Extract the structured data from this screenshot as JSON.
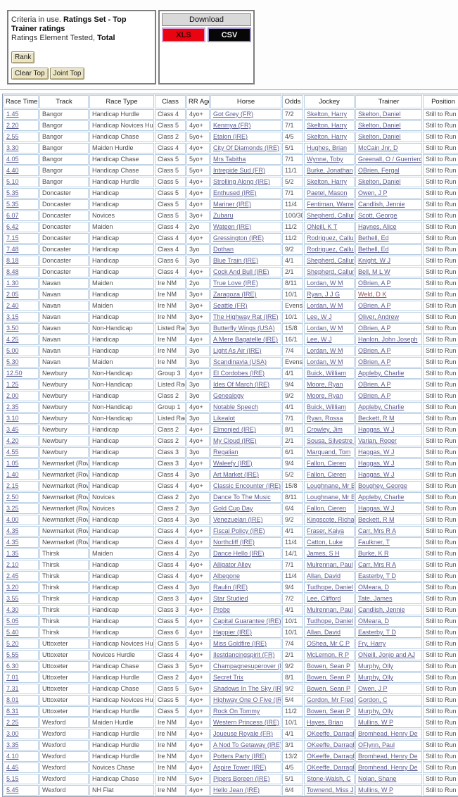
{
  "criteria": {
    "prefix": "Criteria in use.",
    "ratings_set": "Ratings Set - Top Trainer ratings",
    "element_prefix": "Ratings Element Tested,",
    "element_value": "Total",
    "rank_button": "Rank",
    "clear_top_button": "Clear Top",
    "joint_top_button": "Joint Top"
  },
  "download": {
    "title": "Download",
    "xls_label": "XLS",
    "csv_label": "CSV",
    "xls_bg": "#ea0311",
    "csv_bg": "#070707"
  },
  "colors": {
    "link": "#5b5b94",
    "visited_link": "#9a585c",
    "cell_border": "#b9cfe4"
  },
  "table": {
    "columns": [
      "Race Time",
      "Track",
      "Race Type",
      "Class",
      "RR Age",
      "Horse",
      "Odds",
      "Jockey",
      "Trainer",
      "Position"
    ],
    "visited_trainer": "Weld, D K",
    "rows": [
      [
        "1.45",
        "Bangor",
        "Handicap Hurdle",
        "Class 4",
        "4yo+",
        "Got Grey (FR)",
        "7/2",
        "Skelton, Harry",
        "Skelton, Daniel",
        "Still to Run"
      ],
      [
        "2.20",
        "Bangor",
        "Handicap Novices Hurdle",
        "Class 5",
        "4yo+",
        "Kenmya (FR)",
        "7/1",
        "Skelton, Harry",
        "Skelton, Daniel",
        "Still to Run"
      ],
      [
        "2.55",
        "Bangor",
        "Handicap Chase",
        "Class 2",
        "5yo+",
        "Etalon (IRE)",
        "4/5",
        "Skelton, Harry",
        "Skelton, Daniel",
        "Still to Run"
      ],
      [
        "3.30",
        "Bangor",
        "Maiden Hurdle",
        "Class 4",
        "4yo+",
        "City Of Diamonds (IRE)",
        "5/1",
        "Hughes, Brian",
        "McCain Jnr, D",
        "Still to Run"
      ],
      [
        "4.05",
        "Bangor",
        "Handicap Chase",
        "Class 5",
        "5yo+",
        "Mrs Tabitha",
        "7/1",
        "Wynne, Toby",
        "Greenall, O / Guerriero, J",
        "Still to Run"
      ],
      [
        "4.40",
        "Bangor",
        "Handicap Chase",
        "Class 5",
        "5yo+",
        "Intrepide Sud (FR)",
        "11/1",
        "Burke, Jonathan",
        "OBrien, Fergal",
        "Still to Run"
      ],
      [
        "5.10",
        "Bangor",
        "Handicap Hurdle",
        "Class 5",
        "4yo+",
        "Strolling Along (IRE)",
        "5/2",
        "Skelton, Harry",
        "Skelton, Daniel",
        "Still to Run"
      ],
      [
        "5.35",
        "Doncaster",
        "Handicap",
        "Class 5",
        "4yo+",
        "Enthused (IRE)",
        "7/1",
        "Paetel, Mason",
        "Owen, J P",
        "Still to Run"
      ],
      [
        "5.35",
        "Doncaster",
        "Handicap",
        "Class 5",
        "4yo+",
        "Mariner (IRE)",
        "11/4",
        "Fentiman, Warren",
        "Candlish, Jennie",
        "Still to Run"
      ],
      [
        "6.07",
        "Doncaster",
        "Novices",
        "Class 5",
        "3yo+",
        "Zubaru",
        "100/30",
        "Shepherd, Callum",
        "Scott, George",
        "Still to Run"
      ],
      [
        "6.42",
        "Doncaster",
        "Maiden",
        "Class 4",
        "2yo",
        "Wateen (IRE)",
        "11/2",
        "ONeill, K T",
        "Haynes, Alice",
        "Still to Run"
      ],
      [
        "7.15",
        "Doncaster",
        "Handicap",
        "Class 4",
        "4yo+",
        "Gressington (IRE)",
        "11/2",
        "Rodriguez, Callum",
        "Bethell, Ed",
        "Still to Run"
      ],
      [
        "7.48",
        "Doncaster",
        "Handicap",
        "Class 4",
        "3yo",
        "Dothan",
        "9/2",
        "Rodriguez, Callum",
        "Bethell, Ed",
        "Still to Run"
      ],
      [
        "8.18",
        "Doncaster",
        "Handicap",
        "Class 6",
        "3yo",
        "Blue Train (IRE)",
        "4/1",
        "Shepherd, Callum",
        "Knight, W J",
        "Still to Run"
      ],
      [
        "8.48",
        "Doncaster",
        "Handicap",
        "Class 4",
        "4yo+",
        "Cock And Bull (IRE)",
        "2/1",
        "Shepherd, Callum",
        "Bell, M L W",
        "Still to Run"
      ],
      [
        "1.30",
        "Navan",
        "Maiden",
        "Ire NM",
        "2yo",
        "True Love (IRE)",
        "8/11",
        "Lordan, W M",
        "OBrien, A P",
        "Still to Run"
      ],
      [
        "2.05",
        "Navan",
        "Handicap",
        "Ire NM",
        "3yo+",
        "Zaragoza (IRE)",
        "10/1",
        "Ryan, J J G",
        "Weld, D K",
        "Still to Run"
      ],
      [
        "2.40",
        "Navan",
        "Maiden",
        "Ire NM",
        "3yo+",
        "Seattle (FR)",
        "Evens",
        "Lordan, W M",
        "OBrien, A P",
        "Still to Run"
      ],
      [
        "3.15",
        "Navan",
        "Handicap",
        "Ire NM",
        "3yo+",
        "The Highway Rat (IRE)",
        "10/1",
        "Lee, W J",
        "Oliver, Andrew",
        "Still to Run"
      ],
      [
        "3.50",
        "Navan",
        "Non-Handicap",
        "Listed Race",
        "3yo",
        "Butterfly Wings (USA)",
        "15/8",
        "Lordan, W M",
        "OBrien, A P",
        "Still to Run"
      ],
      [
        "4.25",
        "Navan",
        "Handicap",
        "Ire NM",
        "4yo+",
        "A Mere Bagatelle (IRE)",
        "16/1",
        "Lee, W J",
        "Hanlon, John Joseph",
        "Still to Run"
      ],
      [
        "5.00",
        "Navan",
        "Handicap",
        "Ire NM",
        "3yo",
        "Light As Air (IRE)",
        "7/4",
        "Lordan, W M",
        "OBrien, A P",
        "Still to Run"
      ],
      [
        "5.30",
        "Navan",
        "Maiden",
        "Ire NM",
        "3yo",
        "Scandinavia (USA)",
        "Evens",
        "Lordan, W M",
        "OBrien, A P",
        "Still to Run"
      ],
      [
        "12.50",
        "Newbury",
        "Non-Handicap",
        "Group 3",
        "4yo+",
        "El Cordobes (IRE)",
        "4/1",
        "Buick, William",
        "Appleby, Charlie",
        "Still to Run"
      ],
      [
        "1.25",
        "Newbury",
        "Non-Handicap",
        "Listed Race",
        "3yo",
        "Ides Of March (IRE)",
        "9/4",
        "Moore, Ryan",
        "OBrien, A P",
        "Still to Run"
      ],
      [
        "2.00",
        "Newbury",
        "Handicap",
        "Class 2",
        "3yo",
        "Genealogy",
        "9/2",
        "Moore, Ryan",
        "OBrien, A P",
        "Still to Run"
      ],
      [
        "2.35",
        "Newbury",
        "Non-Handicap",
        "Group 1",
        "4yo+",
        "Notable Speech",
        "4/1",
        "Buick, William",
        "Appleby, Charlie",
        "Still to Run"
      ],
      [
        "3.10",
        "Newbury",
        "Non-Handicap",
        "Listed Race",
        "3yo",
        "Likealot",
        "7/1",
        "Ryan, Rossa",
        "Beckett, R M",
        "Still to Run"
      ],
      [
        "3.45",
        "Newbury",
        "Handicap",
        "Class 2",
        "4yo+",
        "Elmonjed (IRE)",
        "8/1",
        "Crowley, Jim",
        "Haggas, W J",
        "Still to Run"
      ],
      [
        "4.20",
        "Newbury",
        "Handicap",
        "Class 2",
        "4yo+",
        "My Cloud (IRE)",
        "2/1",
        "Sousa, Silvestre De",
        "Varian, Roger",
        "Still to Run"
      ],
      [
        "4.55",
        "Newbury",
        "Handicap",
        "Class 3",
        "3yo",
        "Regalian",
        "6/1",
        "Marquand, Tom",
        "Haggas, W J",
        "Still to Run"
      ],
      [
        "1.05",
        "Newmarket (Rowley)",
        "Handicap",
        "Class 3",
        "4yo+",
        "Waleefy (IRE)",
        "9/4",
        "Fallon, Cieren",
        "Haggas, W J",
        "Still to Run"
      ],
      [
        "1.40",
        "Newmarket (Rowley)",
        "Handicap",
        "Class 4",
        "3yo",
        "Art Market (IRE)",
        "5/2",
        "Fallon, Cieren",
        "Haggas, W J",
        "Still to Run"
      ],
      [
        "2.15",
        "Newmarket (Rowley)",
        "Handicap",
        "Class 4",
        "4yo+",
        "Classic Encounter (IRE)",
        "15/8",
        "Loughnane, Mr Billy",
        "Boughey, George",
        "Still to Run"
      ],
      [
        "2.50",
        "Newmarket (Rowley)",
        "Novices",
        "Class 2",
        "2yo",
        "Dance To The Music",
        "8/11",
        "Loughnane, Mr Billy",
        "Appleby, Charlie",
        "Still to Run"
      ],
      [
        "3.25",
        "Newmarket (Rowley)",
        "Novices",
        "Class 2",
        "3yo",
        "Gold Cup Day",
        "6/4",
        "Fallon, Cieren",
        "Haggas, W J",
        "Still to Run"
      ],
      [
        "4.00",
        "Newmarket (Rowley)",
        "Handicap",
        "Class 4",
        "3yo",
        "Venezuelan (IRE)",
        "9/2",
        "Kingscote, Richard",
        "Beckett, R M",
        "Still to Run"
      ],
      [
        "4.35",
        "Newmarket (Rowley)",
        "Handicap",
        "Class 4",
        "4yo+",
        "Fiscal Policy (IRE)",
        "4/1",
        "Fraser, Kaiya",
        "Carr, Mrs R A",
        "Still to Run"
      ],
      [
        "4.35",
        "Newmarket (Rowley)",
        "Handicap",
        "Class 4",
        "4yo+",
        "Northcliff (IRE)",
        "11/4",
        "Catton, Luke",
        "Faulkner, T",
        "Still to Run"
      ],
      [
        "1.35",
        "Thirsk",
        "Maiden",
        "Class 4",
        "2yo",
        "Dance Hello (IRE)",
        "14/1",
        "James, S H",
        "Burke, K R",
        "Still to Run"
      ],
      [
        "2.10",
        "Thirsk",
        "Handicap",
        "Class 4",
        "4yo+",
        "Alligator Alley",
        "7/1",
        "Mulrennan, Paul",
        "Carr, Mrs R A",
        "Still to Run"
      ],
      [
        "2.45",
        "Thirsk",
        "Handicap",
        "Class 4",
        "4yo+",
        "Albegone",
        "11/4",
        "Allan, David",
        "Easterby, T D",
        "Still to Run"
      ],
      [
        "3.20",
        "Thirsk",
        "Handicap",
        "Class 4",
        "3yo",
        "Raulin (IRE)",
        "9/4",
        "Tudhope, Daniel",
        "OMeara, D",
        "Still to Run"
      ],
      [
        "3.55",
        "Thirsk",
        "Handicap",
        "Class 3",
        "4yo+",
        "Star Studied",
        "7/2",
        "Lee, Clifford",
        "Tate, James",
        "Still to Run"
      ],
      [
        "4.30",
        "Thirsk",
        "Handicap",
        "Class 3",
        "4yo+",
        "Probe",
        "4/1",
        "Mulrennan, Paul",
        "Candlish, Jennie",
        "Still to Run"
      ],
      [
        "5.05",
        "Thirsk",
        "Handicap",
        "Class 5",
        "4yo+",
        "Capital Guarantee (IRE)",
        "10/1",
        "Tudhope, Daniel",
        "OMeara, D",
        "Still to Run"
      ],
      [
        "5.40",
        "Thirsk",
        "Handicap",
        "Class 6",
        "4yo+",
        "Happier (IRE)",
        "10/1",
        "Allan, David",
        "Easterby, T D",
        "Still to Run"
      ],
      [
        "5.20",
        "Uttoxeter",
        "Handicap Novices Hurdle",
        "Class 5",
        "4yo+",
        "Miss Goldfire (IRE)",
        "7/4",
        "OShea, Mr C P",
        "Fry, Harry",
        "Still to Run"
      ],
      [
        "5.55",
        "Uttoxeter",
        "Novices Hurdle",
        "Class 4",
        "4yo+",
        "Ilestdancingspirit (FR)",
        "2/1",
        "McLernon, R P",
        "ONeill, Jonjo and AJ",
        "Still to Run"
      ],
      [
        "6.30",
        "Uttoxeter",
        "Handicap Chase",
        "Class 3",
        "5yo+",
        "Champagnesuperover (IRE)",
        "9/2",
        "Bowen, Sean P",
        "Murphy, Olly",
        "Still to Run"
      ],
      [
        "7.01",
        "Uttoxeter",
        "Handicap Hurdle",
        "Class 2",
        "4yo+",
        "Secret Trix",
        "8/1",
        "Bowen, Sean P",
        "Murphy, Olly",
        "Still to Run"
      ],
      [
        "7.31",
        "Uttoxeter",
        "Handicap Chase",
        "Class 5",
        "5yo+",
        "Shadows In The Sky (IRE)",
        "9/2",
        "Bowen, Sean P",
        "Owen, J P",
        "Still to Run"
      ],
      [
        "8.01",
        "Uttoxeter",
        "Handicap Novices Hurdle",
        "Class 5",
        "4yo+",
        "Highway One O Five (IRE)",
        "5/4",
        "Gordon, Mr Fred",
        "Gordon, C",
        "Still to Run"
      ],
      [
        "8.31",
        "Uttoxeter",
        "Handicap Hurdle",
        "Class 5",
        "4yo+",
        "Rock On Tommy",
        "11/2",
        "Bowen, Sean P",
        "Murphy, Olly",
        "Still to Run"
      ],
      [
        "2.25",
        "Wexford",
        "Maiden Hurdle",
        "Ire NM",
        "4yo+",
        "Western Princess (IRE)",
        "10/1",
        "Hayes, Brian",
        "Mullins, W P",
        "Still to Run"
      ],
      [
        "3.00",
        "Wexford",
        "Handicap Hurdle",
        "Ire NM",
        "4yo+",
        "Joueuse Royale (FR)",
        "4/1",
        "OKeeffe, Darragh",
        "Bromhead, Henry De",
        "Still to Run"
      ],
      [
        "3.35",
        "Wexford",
        "Handicap Hurdle",
        "Ire NM",
        "4yo+",
        "A Nod To Getaway (IRE)",
        "3/1",
        "OKeeffe, Darragh",
        "OFlynn, Paul",
        "Still to Run"
      ],
      [
        "4.10",
        "Wexford",
        "Handicap Hurdle",
        "Ire NM",
        "4yo+",
        "Potters Party (IRE)",
        "13/2",
        "OKeeffe, Darragh",
        "Bromhead, Henry De",
        "Still to Run"
      ],
      [
        "4.45",
        "Wexford",
        "Novices Chase",
        "Ire NM",
        "4yo+",
        "Aspire Tower (IRE)",
        "4/5",
        "OKeeffe, Darragh",
        "Bromhead, Henry De",
        "Still to Run"
      ],
      [
        "5.15",
        "Wexford",
        "Handicap Chase",
        "Ire NM",
        "5yo+",
        "Pipers Boreen (IRE)",
        "5/1",
        "Stone-Walsh, C",
        "Nolan, Shane",
        "Still to Run"
      ],
      [
        "5.45",
        "Wexford",
        "NH Flat",
        "Ire NM",
        "4yo+",
        "Hello Jean (IRE)",
        "6/4",
        "Townend, Miss J",
        "Mullins, W P",
        "Still to Run"
      ]
    ]
  }
}
